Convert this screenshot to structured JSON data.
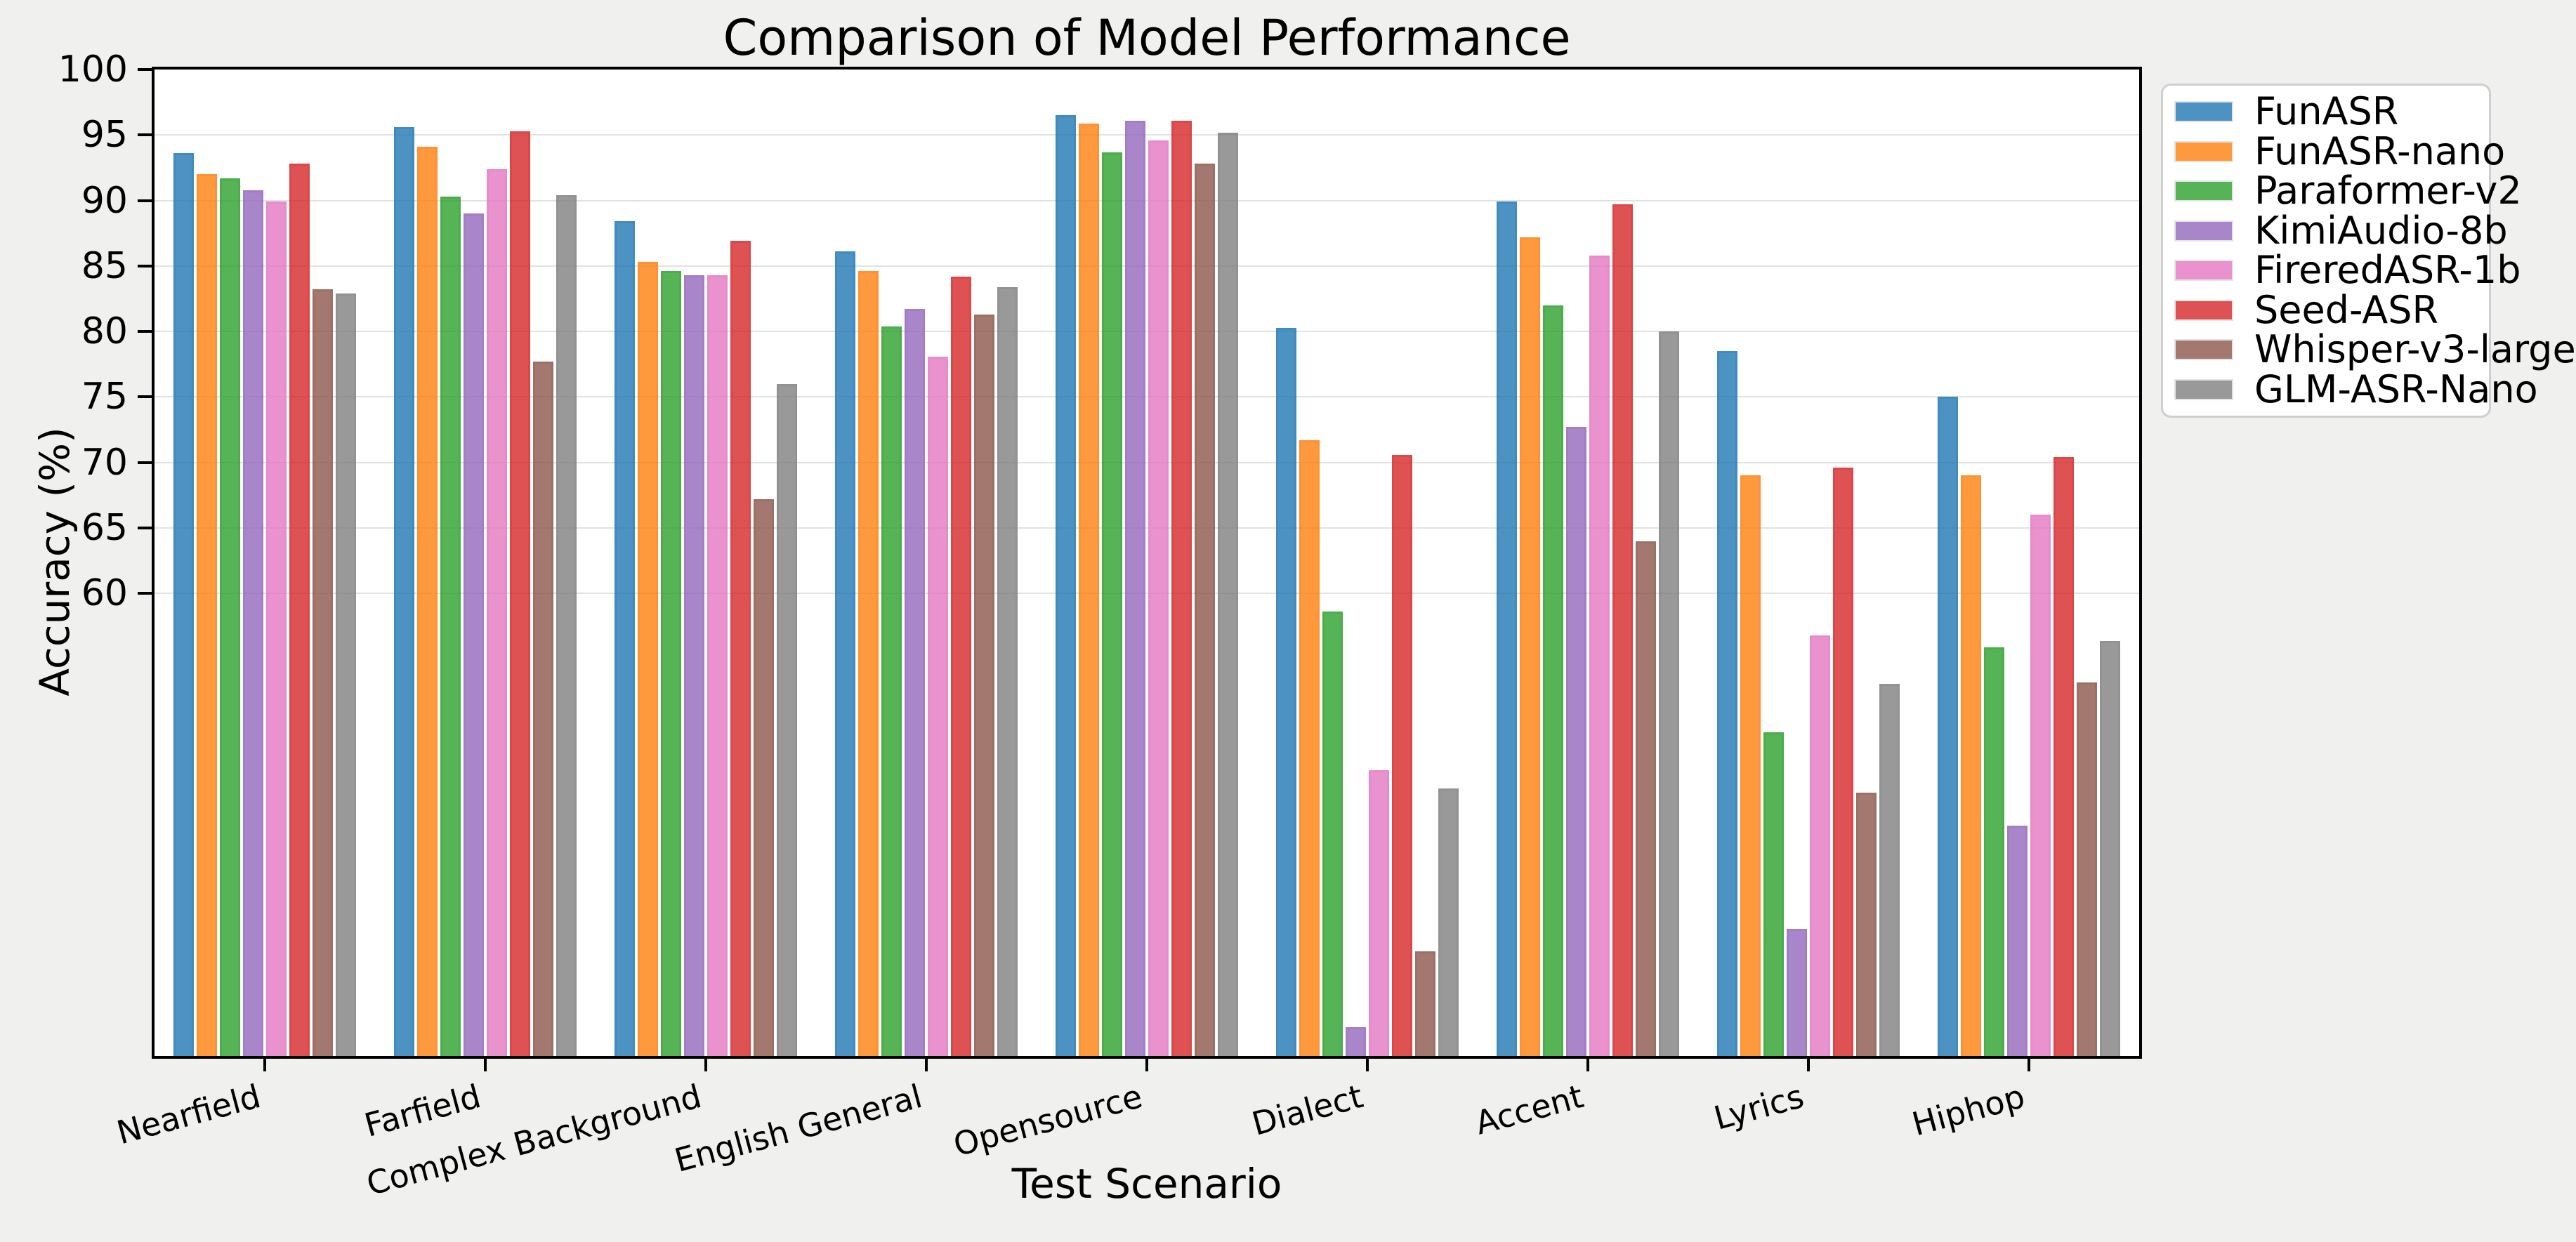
{
  "chart_data": {
    "type": "bar",
    "title": "Comparison of Model Performance",
    "xlabel": "Test Scenario",
    "ylabel": "Accuracy (%)",
    "categories": [
      "Nearfield",
      "Farfield",
      "Complex Background",
      "English General",
      "Opensource",
      "Dialect",
      "Accent",
      "Lyrics",
      "Hiphop"
    ],
    "series": [
      {
        "name": "FunASR",
        "color": "rgba(31,119,180,0.8)",
        "values": [
          93.6,
          95.6,
          88.4,
          86.1,
          96.5,
          80.3,
          89.9,
          78.5,
          75.0
        ]
      },
      {
        "name": "FunASR-nano",
        "color": "rgba(255,127,14,0.8)",
        "values": [
          92.0,
          94.1,
          85.3,
          84.6,
          95.9,
          71.7,
          87.2,
          69.0,
          69.0
        ]
      },
      {
        "name": "Paraformer-v2",
        "color": "rgba(44,160,44,0.8)",
        "values": [
          91.7,
          90.3,
          84.6,
          80.4,
          93.7,
          58.6,
          82.0,
          49.4,
          55.9
        ]
      },
      {
        "name": "KimiAudio-8b",
        "color": "rgba(148,103,189,0.8)",
        "values": [
          90.8,
          89.0,
          84.3,
          81.7,
          96.1,
          26.9,
          72.7,
          34.4,
          42.3
        ]
      },
      {
        "name": "FireredASR-1b",
        "color": "rgba(227,119,194,0.8)",
        "values": [
          89.9,
          92.4,
          84.3,
          78.1,
          94.6,
          46.5,
          85.8,
          56.8,
          66.0
        ]
      },
      {
        "name": "Seed-ASR",
        "color": "rgba(214,39,40,0.8)",
        "values": [
          92.8,
          95.3,
          86.9,
          84.2,
          96.1,
          70.6,
          89.7,
          69.6,
          70.4
        ]
      },
      {
        "name": "Whisper-v3-large",
        "color": "rgba(140,86,75,0.8)",
        "values": [
          83.2,
          77.7,
          67.2,
          81.3,
          92.8,
          32.7,
          64.0,
          44.8,
          53.2
        ]
      },
      {
        "name": "GLM-ASR-Nano",
        "color": "rgba(127,127,127,0.8)",
        "values": [
          82.9,
          90.4,
          76.0,
          83.4,
          95.2,
          45.1,
          80.0,
          53.1,
          56.4
        ]
      }
    ],
    "yticks": [
      100,
      95,
      90,
      85,
      80,
      75,
      70,
      65,
      60
    ],
    "ylim": [
      24.7,
      100
    ],
    "grid": true,
    "legend_position": "outside-top-right"
  },
  "colors": {
    "figure_background": "#f0f0ee",
    "plot_background": "#ffffff",
    "gridline": "#e2e2e2",
    "spine": "#000000",
    "text": "#000000",
    "legend_background": "#ffffff",
    "legend_border": "#cfcfcf"
  }
}
